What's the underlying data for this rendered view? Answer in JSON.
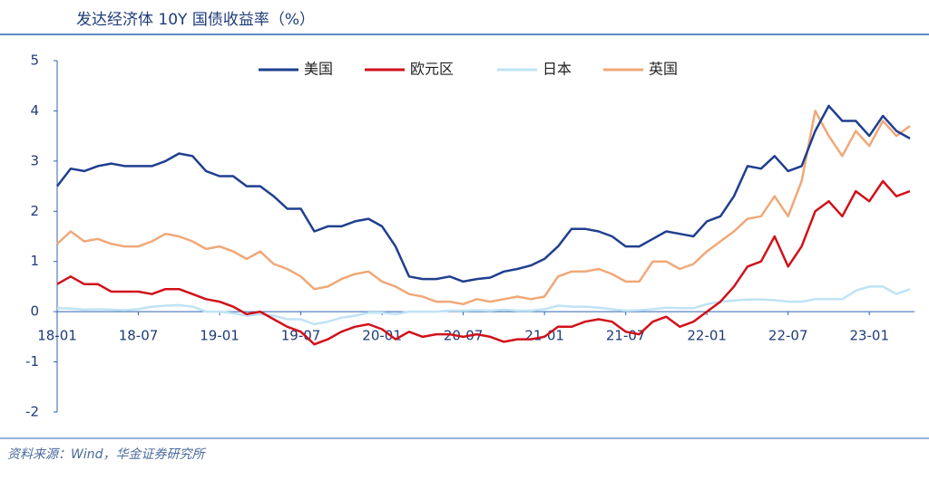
{
  "chart_data": {
    "type": "line",
    "title": "发达经济体 10Y 国债收益率（%）",
    "source": "资料来源：Wind，华金证券研究所",
    "categories": [
      "18-01",
      null,
      null,
      null,
      null,
      null,
      "18-07",
      null,
      null,
      null,
      null,
      null,
      "19-01",
      null,
      null,
      null,
      null,
      null,
      "19-07",
      null,
      null,
      null,
      null,
      null,
      "20-01",
      null,
      null,
      null,
      null,
      null,
      "20-07",
      null,
      null,
      null,
      null,
      null,
      "21-01",
      null,
      null,
      null,
      null,
      null,
      "21-07",
      null,
      null,
      null,
      null,
      null,
      "22-01",
      null,
      null,
      null,
      null,
      null,
      "22-07",
      null,
      null,
      null,
      null,
      null,
      "23-01",
      null,
      null,
      null
    ],
    "ylim": [
      -2,
      5
    ],
    "yticks": [
      -2,
      -1,
      0,
      1,
      2,
      3,
      4,
      5
    ],
    "legend": "top",
    "series": [
      {
        "name": "美国",
        "color": "#1f3f8f",
        "values": [
          2.5,
          2.85,
          2.8,
          2.9,
          2.95,
          2.9,
          2.9,
          2.9,
          3.0,
          3.15,
          3.1,
          2.8,
          2.7,
          2.7,
          2.5,
          2.5,
          2.3,
          2.05,
          2.05,
          1.6,
          1.7,
          1.7,
          1.8,
          1.85,
          1.7,
          1.3,
          0.7,
          0.65,
          0.65,
          0.7,
          0.6,
          0.65,
          0.68,
          0.8,
          0.85,
          0.92,
          1.05,
          1.3,
          1.65,
          1.65,
          1.6,
          1.5,
          1.3,
          1.3,
          1.45,
          1.6,
          1.55,
          1.5,
          1.8,
          1.9,
          2.3,
          2.9,
          2.85,
          3.1,
          2.8,
          2.9,
          3.6,
          4.1,
          3.8,
          3.8,
          3.5,
          3.9,
          3.6,
          3.45
        ]
      },
      {
        "name": "欧元区",
        "color": "#d0121b",
        "values": [
          0.55,
          0.7,
          0.55,
          0.55,
          0.4,
          0.4,
          0.4,
          0.35,
          0.45,
          0.45,
          0.35,
          0.25,
          0.2,
          0.1,
          -0.05,
          0.0,
          -0.15,
          -0.3,
          -0.4,
          -0.65,
          -0.55,
          -0.4,
          -0.3,
          -0.25,
          -0.35,
          -0.55,
          -0.4,
          -0.5,
          -0.45,
          -0.45,
          -0.5,
          -0.45,
          -0.5,
          -0.6,
          -0.55,
          -0.55,
          -0.5,
          -0.3,
          -0.3,
          -0.2,
          -0.15,
          -0.2,
          -0.4,
          -0.45,
          -0.2,
          -0.1,
          -0.3,
          -0.2,
          0.0,
          0.2,
          0.5,
          0.9,
          1.0,
          1.5,
          0.9,
          1.3,
          2.0,
          2.2,
          1.9,
          2.4,
          2.2,
          2.6,
          2.3,
          2.4
        ]
      },
      {
        "name": "日本",
        "color": "#bfe3f5",
        "values": [
          0.07,
          0.06,
          0.04,
          0.05,
          0.04,
          0.03,
          0.05,
          0.1,
          0.12,
          0.13,
          0.1,
          0.0,
          0.0,
          -0.03,
          -0.08,
          -0.05,
          -0.08,
          -0.15,
          -0.15,
          -0.25,
          -0.2,
          -0.12,
          -0.08,
          -0.02,
          -0.02,
          -0.05,
          0.0,
          0.0,
          0.0,
          0.02,
          0.02,
          0.03,
          0.02,
          0.04,
          0.02,
          0.02,
          0.05,
          0.12,
          0.1,
          0.1,
          0.08,
          0.05,
          0.02,
          0.03,
          0.05,
          0.08,
          0.07,
          0.07,
          0.15,
          0.2,
          0.22,
          0.24,
          0.24,
          0.23,
          0.2,
          0.2,
          0.25,
          0.25,
          0.25,
          0.42,
          0.5,
          0.5,
          0.35,
          0.45
        ]
      },
      {
        "name": "英国",
        "color": "#f0a878",
        "values": [
          1.35,
          1.6,
          1.4,
          1.45,
          1.35,
          1.3,
          1.3,
          1.4,
          1.55,
          1.5,
          1.4,
          1.25,
          1.3,
          1.2,
          1.05,
          1.2,
          0.95,
          0.85,
          0.7,
          0.45,
          0.5,
          0.65,
          0.75,
          0.8,
          0.6,
          0.5,
          0.35,
          0.3,
          0.2,
          0.2,
          0.15,
          0.25,
          0.2,
          0.25,
          0.3,
          0.25,
          0.3,
          0.7,
          0.8,
          0.8,
          0.85,
          0.75,
          0.6,
          0.6,
          1.0,
          1.0,
          0.85,
          0.95,
          1.2,
          1.4,
          1.6,
          1.85,
          1.9,
          2.3,
          1.9,
          2.6,
          4.0,
          3.5,
          3.1,
          3.6,
          3.3,
          3.8,
          3.5,
          3.7
        ]
      }
    ]
  }
}
